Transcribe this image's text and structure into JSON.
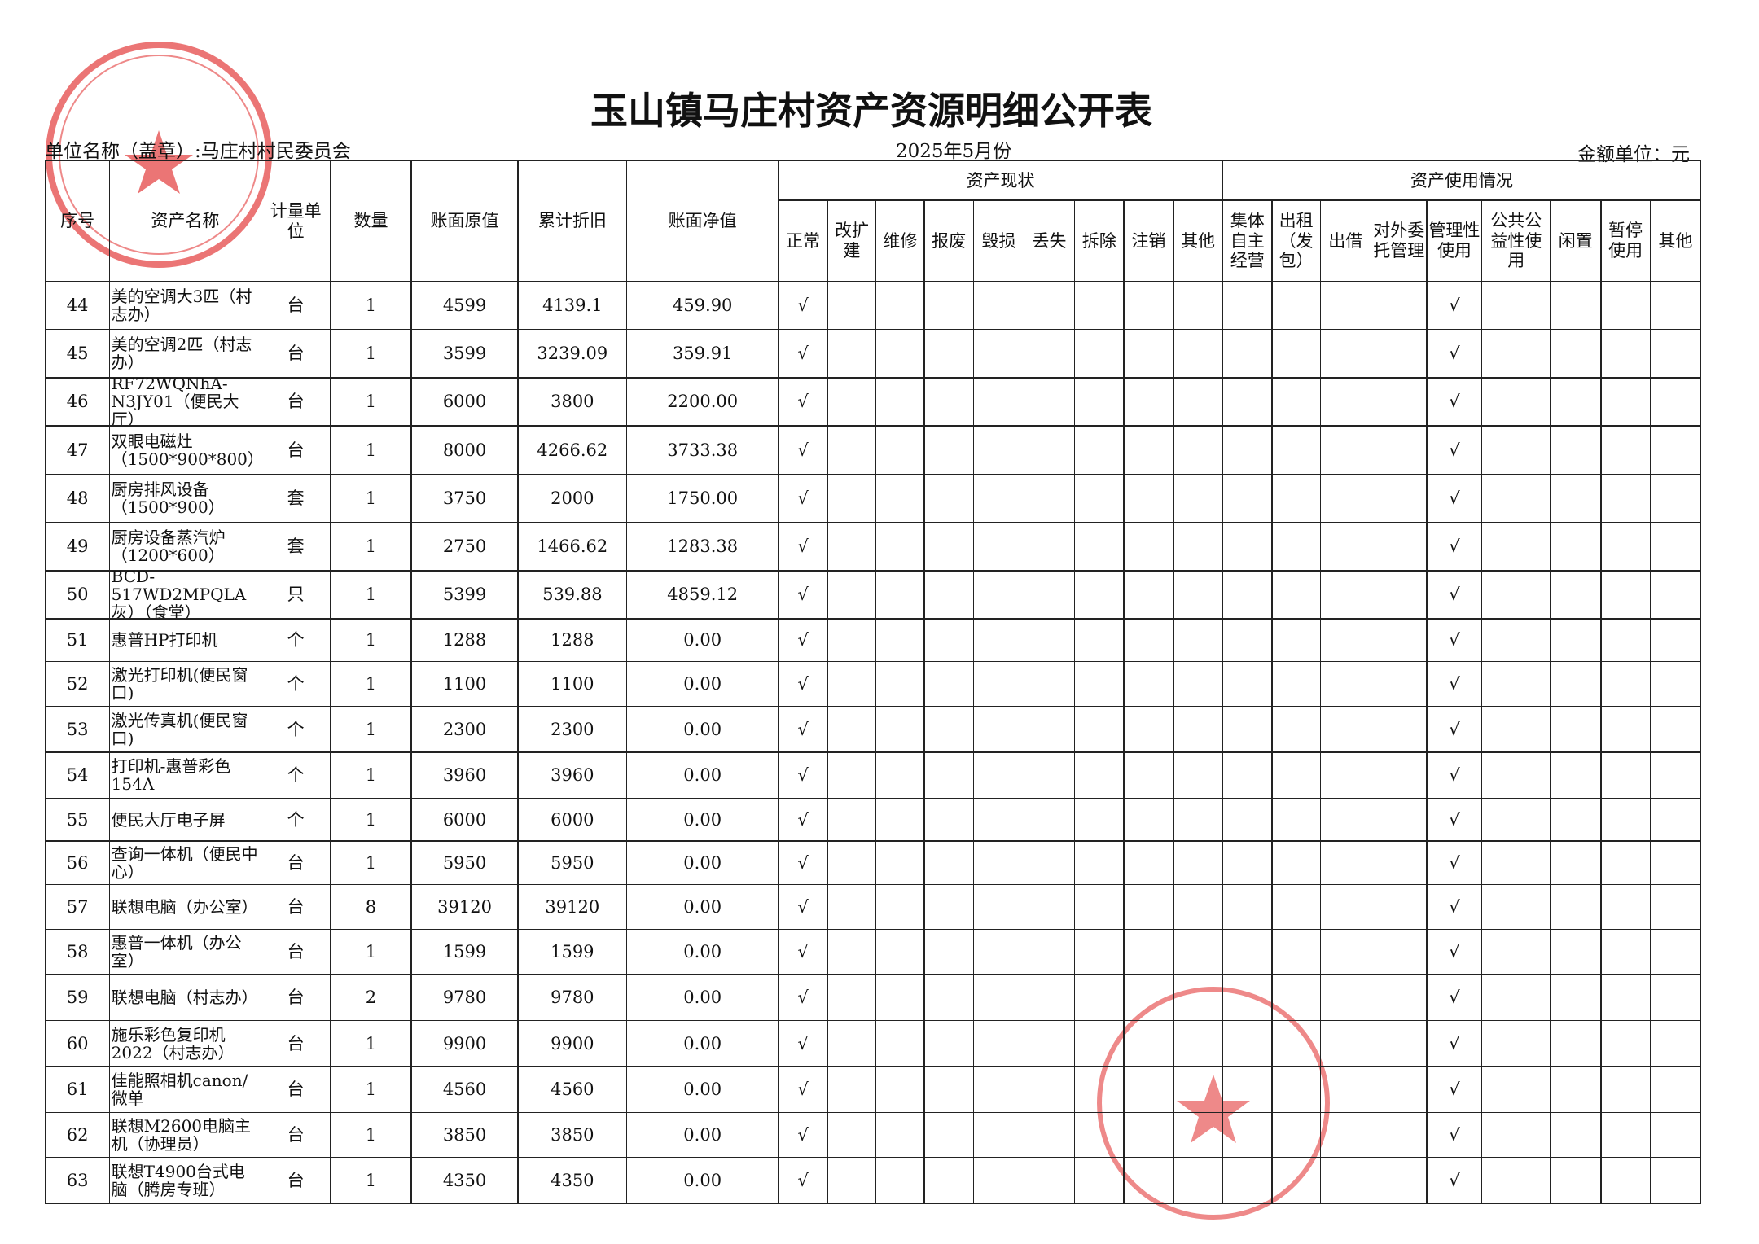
{
  "header": {
    "title": "玉山镇马庄村资产资源明细公开表",
    "unit": "单位名称（盖章）:马庄村村民委员会",
    "date": "2025年5月份",
    "currency": "金额单位：元"
  },
  "table": {
    "columns": [
      "序号",
      "资产名称",
      "计量单位",
      "数量",
      "账面原值",
      "累计折旧",
      "账面净值"
    ],
    "status_group": {
      "title": "资产现状",
      "columns": [
        "正常",
        "改扩建",
        "维修",
        "报废",
        "毁损",
        "丢失",
        "拆除",
        "注销",
        "其他"
      ]
    },
    "usage_group": {
      "title": "资产使用情况",
      "columns": [
        "集体自主经营",
        "出租（发包）",
        "出借",
        "对外委托管理",
        "管理性使用",
        "公共公益性使用",
        "闲置",
        "暂停使用",
        "其他"
      ]
    },
    "rows": [
      {
        "no": "44",
        "name": "美的空调大3匹（村志办）",
        "unit": "台",
        "qty": "1",
        "original": "4599",
        "depreciation": "4139.1",
        "net": "459.90",
        "normal": "√",
        "managed": "√"
      },
      {
        "no": "45",
        "name": "美的空调2匹（村志办）",
        "unit": "台",
        "qty": "1",
        "original": "3599",
        "depreciation": "3239.09",
        "net": "359.91",
        "normal": "√",
        "managed": "√"
      },
      {
        "no": "46",
        "name": "RF72WQNhA-N3JY01（便民大厅）",
        "unit": "台",
        "qty": "1",
        "original": "6000",
        "depreciation": "3800",
        "net": "2200.00",
        "normal": "√",
        "managed": "√"
      },
      {
        "no": "47",
        "name": "双眼电磁灶（1500*900*800）",
        "unit": "台",
        "qty": "1",
        "original": "8000",
        "depreciation": "4266.62",
        "net": "3733.38",
        "normal": "√",
        "managed": "√"
      },
      {
        "no": "48",
        "name": "厨房排风设备（1500*900）",
        "unit": "套",
        "qty": "1",
        "original": "3750",
        "depreciation": "2000",
        "net": "1750.00",
        "normal": "√",
        "managed": "√"
      },
      {
        "no": "49",
        "name": "厨房设备蒸汽炉（1200*600）",
        "unit": "套",
        "qty": "1",
        "original": "2750",
        "depreciation": "1466.62",
        "net": "1283.38",
        "normal": "√",
        "managed": "√"
      },
      {
        "no": "50",
        "name": "BCD-517WD2MPQLA灰）（食堂）",
        "unit": "只",
        "qty": "1",
        "original": "5399",
        "depreciation": "539.88",
        "net": "4859.12",
        "normal": "√",
        "managed": "√"
      },
      {
        "no": "51",
        "name": "惠普HP打印机",
        "unit": "个",
        "qty": "1",
        "original": "1288",
        "depreciation": "1288",
        "net": "0.00",
        "normal": "√",
        "managed": "√"
      },
      {
        "no": "52",
        "name": "激光打印机(便民窗口)",
        "unit": "个",
        "qty": "1",
        "original": "1100",
        "depreciation": "1100",
        "net": "0.00",
        "normal": "√",
        "managed": "√"
      },
      {
        "no": "53",
        "name": "激光传真机(便民窗口)",
        "unit": "个",
        "qty": "1",
        "original": "2300",
        "depreciation": "2300",
        "net": "0.00",
        "normal": "√",
        "managed": "√"
      },
      {
        "no": "54",
        "name": "打印机-惠普彩色154A",
        "unit": "个",
        "qty": "1",
        "original": "3960",
        "depreciation": "3960",
        "net": "0.00",
        "normal": "√",
        "managed": "√"
      },
      {
        "no": "55",
        "name": "便民大厅电子屏",
        "unit": "个",
        "qty": "1",
        "original": "6000",
        "depreciation": "6000",
        "net": "0.00",
        "normal": "√",
        "managed": "√"
      },
      {
        "no": "56",
        "name": "查询一体机（便民中心）",
        "unit": "台",
        "qty": "1",
        "original": "5950",
        "depreciation": "5950",
        "net": "0.00",
        "normal": "√",
        "managed": "√"
      },
      {
        "no": "57",
        "name": "联想电脑（办公室）",
        "unit": "台",
        "qty": "8",
        "original": "39120",
        "depreciation": "39120",
        "net": "0.00",
        "normal": "√",
        "managed": "√"
      },
      {
        "no": "58",
        "name": "惠普一体机（办公室）",
        "unit": "台",
        "qty": "1",
        "original": "1599",
        "depreciation": "1599",
        "net": "0.00",
        "normal": "√",
        "managed": "√"
      },
      {
        "no": "59",
        "name": "联想电脑（村志办）",
        "unit": "台",
        "qty": "2",
        "original": "9780",
        "depreciation": "9780",
        "net": "0.00",
        "normal": "√",
        "managed": "√"
      },
      {
        "no": "60",
        "name": "施乐彩色复印机2022（村志办）",
        "unit": "台",
        "qty": "1",
        "original": "9900",
        "depreciation": "9900",
        "net": "0.00",
        "normal": "√",
        "managed": "√"
      },
      {
        "no": "61",
        "name": "佳能照相机canon/微单",
        "unit": "台",
        "qty": "1",
        "original": "4560",
        "depreciation": "4560",
        "net": "0.00",
        "normal": "√",
        "managed": "√"
      },
      {
        "no": "62",
        "name": "联想M2600电脑主机（协理员）",
        "unit": "台",
        "qty": "1",
        "original": "3850",
        "depreciation": "3850",
        "net": "0.00",
        "normal": "√",
        "managed": "√"
      },
      {
        "no": "63",
        "name": "联想T4900台式电脑（腾房专班）",
        "unit": "台",
        "qty": "1",
        "original": "4350",
        "depreciation": "4350",
        "net": "0.00",
        "normal": "√",
        "managed": "√"
      }
    ]
  }
}
